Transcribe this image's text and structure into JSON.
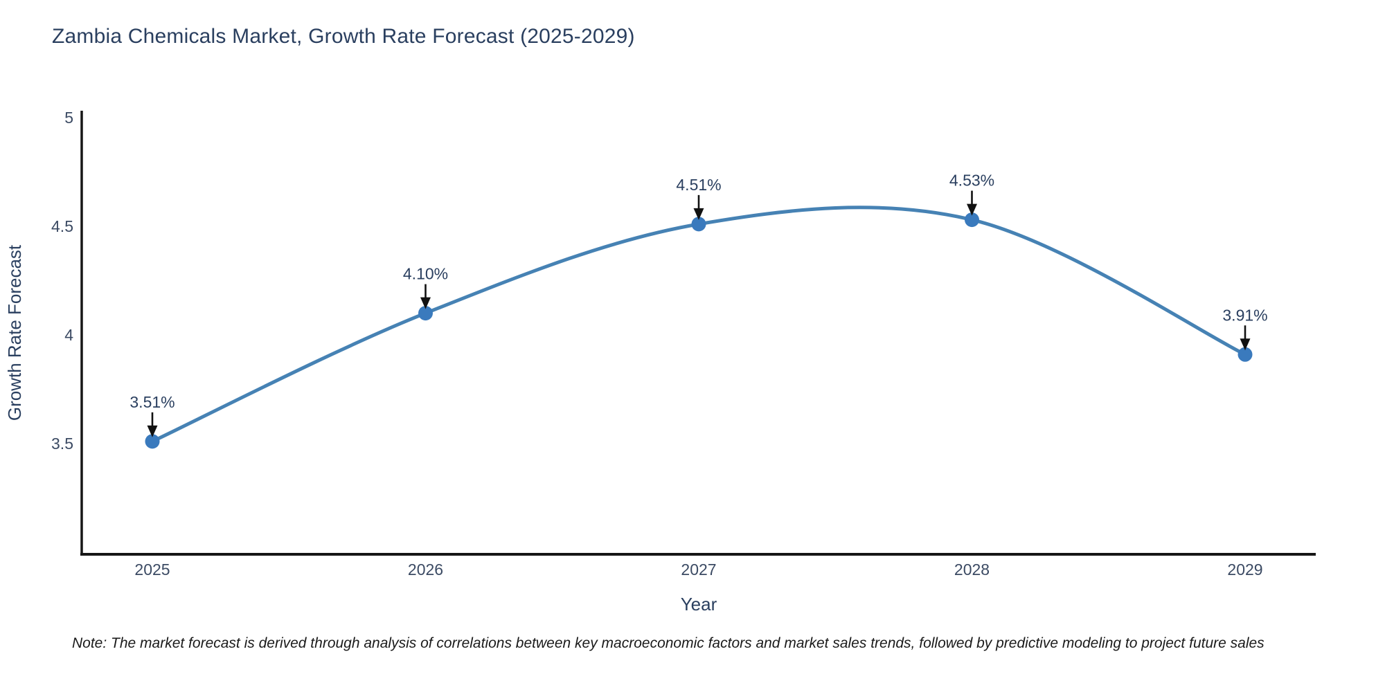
{
  "title": "Zambia Chemicals Market, Growth Rate Forecast (2025-2029)",
  "note": "Note: The market forecast is derived through analysis of correlations between key macroeconomic factors and market sales trends, followed by predictive modeling to project future sales",
  "chart_data": {
    "type": "line",
    "title": "Zambia Chemicals Market, Growth Rate Forecast (2025-2029)",
    "xlabel": "Year",
    "ylabel": "Growth Rate Forecast",
    "categories": [
      "2025",
      "2026",
      "2027",
      "2028",
      "2029"
    ],
    "values": [
      3.51,
      4.1,
      4.51,
      4.53,
      3.91
    ],
    "point_labels": [
      "3.51%",
      "4.10%",
      "4.51%",
      "4.53%",
      "3.91%"
    ],
    "y_ticks": [
      {
        "value": 5,
        "label": "5"
      },
      {
        "value": 4.5,
        "label": "4.5"
      },
      {
        "value": 4,
        "label": "4"
      },
      {
        "value": 3.5,
        "label": "3.5"
      }
    ],
    "ylim": [
      3.0,
      5.03
    ],
    "grid": false,
    "legend_position": "none",
    "line_shape": "spline",
    "colors": {
      "line": "#4682b4",
      "marker": "#3a7abd",
      "arrow": "#111111",
      "axis": "#161616",
      "title_text": "#2a3f5f",
      "tick_text": "#3b4a63",
      "note_text": "#1a1a1a"
    }
  }
}
